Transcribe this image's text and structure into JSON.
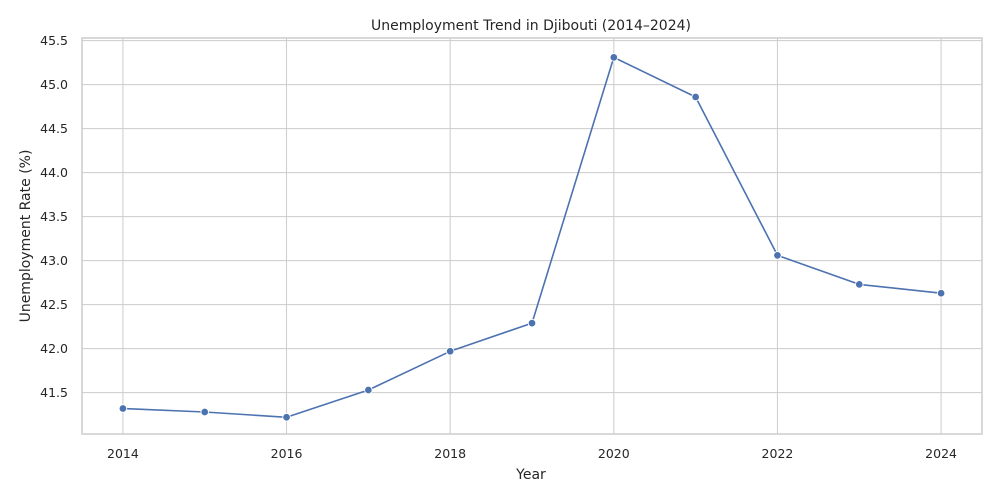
{
  "chart_data": {
    "type": "line",
    "title": "Unemployment Trend in Djibouti (2014–2024)",
    "xlabel": "Year",
    "ylabel": "Unemployment Rate (%)",
    "x": [
      2014,
      2015,
      2016,
      2017,
      2018,
      2019,
      2020,
      2021,
      2022,
      2023,
      2024
    ],
    "series": [
      {
        "values": [
          41.32,
          41.28,
          41.22,
          41.53,
          41.97,
          42.29,
          45.31,
          44.86,
          43.06,
          42.73,
          42.63
        ],
        "color": "#4c72b0"
      }
    ],
    "xlim": [
      2013.5,
      2024.5
    ],
    "ylim": [
      41.03,
      45.53
    ],
    "x_ticks": [
      "2014",
      "2016",
      "2018",
      "2020",
      "2022",
      "2024"
    ],
    "y_ticks": [
      "41.5",
      "42.0",
      "42.5",
      "43.0",
      "43.5",
      "44.0",
      "44.5",
      "45.0",
      "45.5"
    ],
    "grid": true,
    "markers": "circle"
  }
}
